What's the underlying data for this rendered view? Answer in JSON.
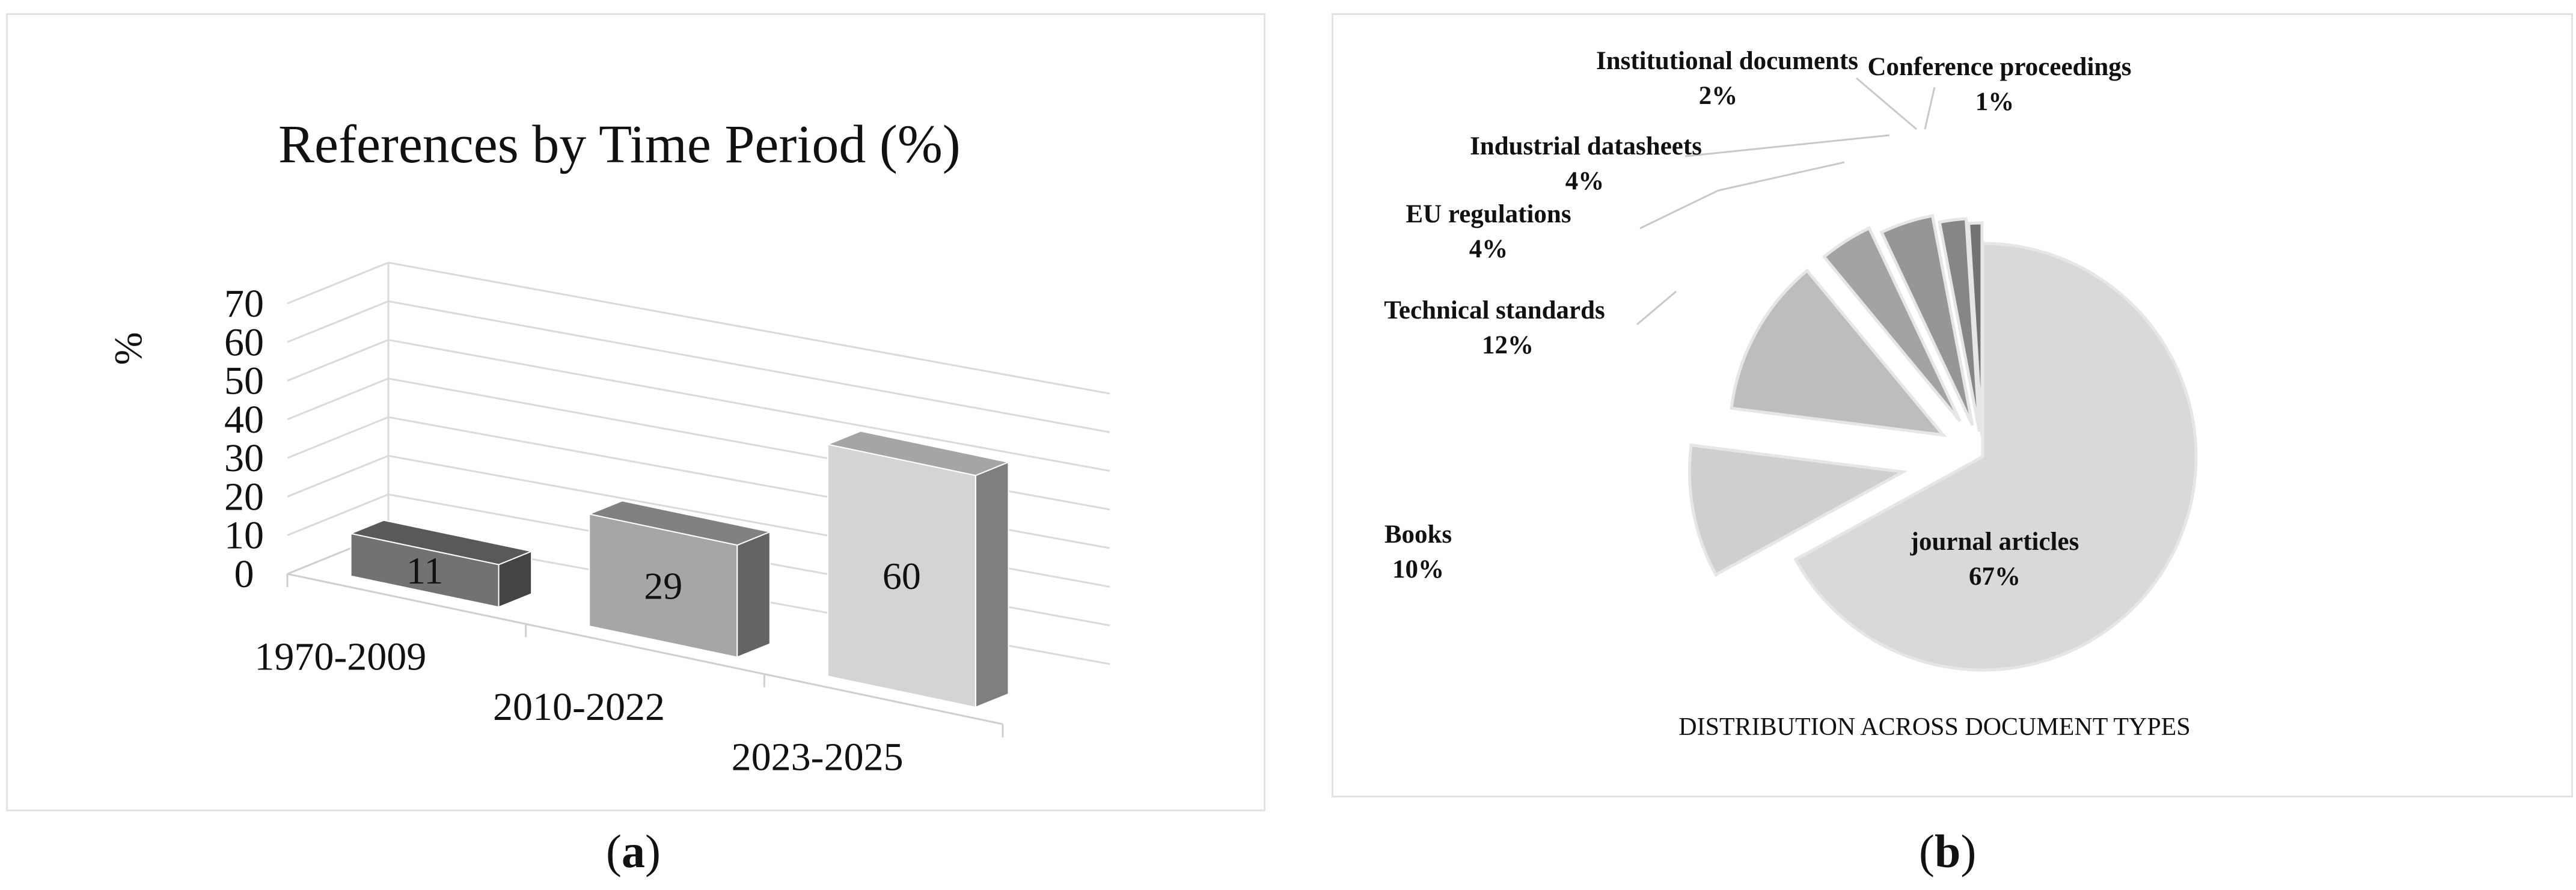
{
  "figure": {
    "label_a": "a",
    "label_b": "b"
  },
  "chart_data": [
    {
      "type": "bar",
      "title": "References by Time Period (%)",
      "ylabel": "%",
      "xlabel": "",
      "ylim": [
        0,
        70
      ],
      "yticks": [
        0,
        10,
        20,
        30,
        40,
        50,
        60,
        70
      ],
      "categories": [
        "1970-2009",
        "2010-2022",
        "2023-2025"
      ],
      "values": [
        11,
        29,
        60
      ],
      "data_labels": [
        "11",
        "29",
        "60"
      ],
      "style": "3d-columns",
      "grid": true,
      "colors": [
        "#727272",
        "#a6a6a6",
        "#d4d4d4"
      ]
    },
    {
      "type": "pie",
      "title": "DISTRIBUTION ACROSS DOCUMENT TYPES",
      "style": "exploded",
      "slices": [
        {
          "label": "journal articles",
          "pct_label": "67%",
          "value": 67,
          "color": "#d9d9d9"
        },
        {
          "label": "Books",
          "pct_label": "10%",
          "value": 10,
          "color": "#cfcfcf"
        },
        {
          "label": "Technical standards",
          "pct_label": "12%",
          "value": 12,
          "color": "#bdbdbd"
        },
        {
          "label": "EU regulations",
          "pct_label": "4%",
          "value": 4,
          "color": "#a3a3a3"
        },
        {
          "label": "Industrial datasheets",
          "pct_label": "4%",
          "value": 4,
          "color": "#969696"
        },
        {
          "label": "Institutional documents",
          "pct_label": "2%",
          "value": 2,
          "color": "#868686"
        },
        {
          "label": "Conference proceedings",
          "pct_label": "1%",
          "value": 1,
          "color": "#737373"
        }
      ]
    }
  ]
}
